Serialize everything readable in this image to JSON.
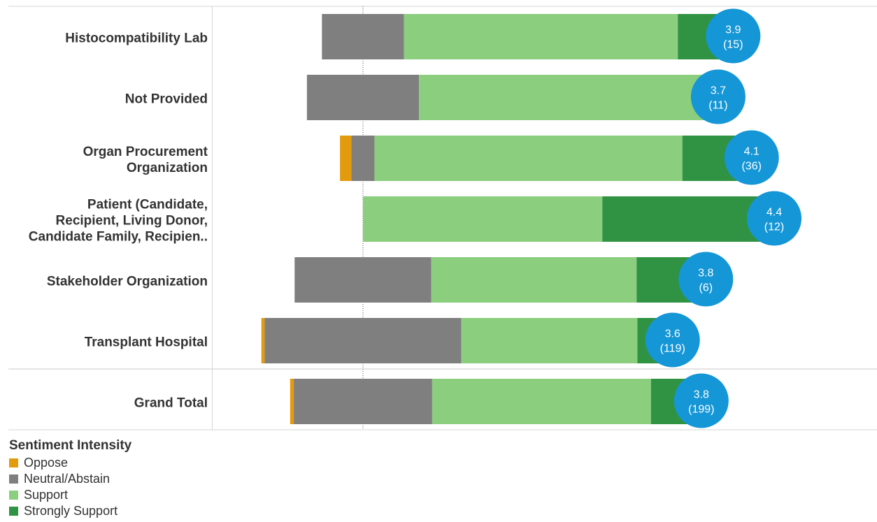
{
  "chart_data": {
    "type": "bar",
    "orientation": "horizontal-diverging",
    "categories": [
      "Histocompatibility Lab",
      "Not Provided",
      "Organ Procurement Organization",
      "Patient (Candidate, Recipient, Living Donor, Candidate Family, Recipien..",
      "Stakeholder Organization",
      "Transplant Hospital",
      "Grand Total"
    ],
    "category_lines": [
      [
        "Histocompatibility Lab"
      ],
      [
        "Not Provided"
      ],
      [
        "Organ Procurement",
        "Organization"
      ],
      [
        "Patient (Candidate,",
        "Recipient, Living Donor,",
        "Candidate Family, Recipien.."
      ],
      [
        "Stakeholder Organization"
      ],
      [
        "Transplant Hospital"
      ],
      [
        "Grand Total"
      ]
    ],
    "series": [
      {
        "name": "Oppose",
        "color": "#E39B0E",
        "values": [
          0,
          0,
          2.8,
          0,
          0,
          0.8,
          0.9
        ]
      },
      {
        "name": "Neutral/Abstain",
        "color": "#7F7F7F",
        "values": [
          20,
          27.3,
          5.6,
          0,
          33.3,
          47.9,
          33.7
        ]
      },
      {
        "name": "Support",
        "color": "#8ACE7E",
        "values": [
          66.7,
          72.7,
          75,
          58.3,
          50,
          42.9,
          53.3
        ]
      },
      {
        "name": "Strongly Support",
        "color": "#309343",
        "values": [
          13.3,
          0,
          16.7,
          41.7,
          16.7,
          8.4,
          12.1
        ]
      }
    ],
    "diverging_baseline": "middle of Neutral/Abstain",
    "bubbles": [
      {
        "score": "3.9",
        "count": "(15)"
      },
      {
        "score": "3.7",
        "count": "(11)"
      },
      {
        "score": "4.1",
        "count": "(36)"
      },
      {
        "score": "4.4",
        "count": "(12)"
      },
      {
        "score": "3.8",
        "count": "(6)"
      },
      {
        "score": "3.6",
        "count": "(119)"
      },
      {
        "score": "3.8",
        "count": "(199)"
      }
    ],
    "bubble_color": "#1596D6",
    "legend": {
      "title": "Sentiment Intensity",
      "placement": "bottom-left",
      "items": [
        "Oppose",
        "Neutral/Abstain",
        "Support",
        "Strongly Support"
      ]
    }
  }
}
